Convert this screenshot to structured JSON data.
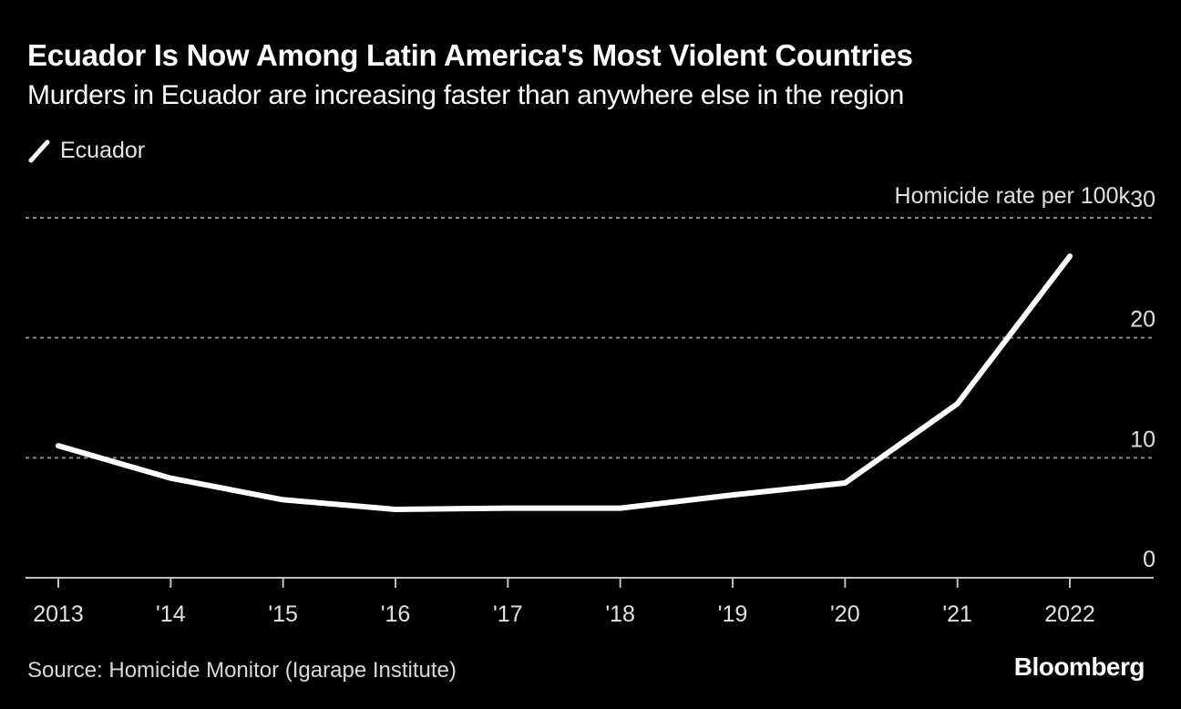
{
  "header": {
    "title": "Ecuador Is Now Among Latin America's Most Violent Countries",
    "subtitle": "Murders in Ecuador are increasing faster than anywhere else in the region"
  },
  "footer": {
    "source": "Source: Homicide Monitor (Igarape Institute)",
    "brand": "Bloomberg"
  },
  "colors": {
    "background": "#000000",
    "line": "#ffffff",
    "grid": "#8a8a8a",
    "axis": "#bfbfbf"
  },
  "chart_data": {
    "type": "line",
    "title": "Ecuador Is Now Among Latin America's Most Violent Countries",
    "subtitle": "Murders in Ecuador are increasing faster than anywhere else in the region",
    "xlabel": "",
    "ylabel": "Homicide rate per 100k",
    "categories": [
      "2013",
      "'14",
      "'15",
      "'16",
      "'17",
      "'18",
      "'19",
      "'20",
      "'21",
      "2022"
    ],
    "series": [
      {
        "name": "Ecuador",
        "values": [
          11.0,
          8.3,
          6.5,
          5.7,
          5.8,
          5.8,
          6.9,
          7.9,
          14.5,
          26.8
        ]
      }
    ],
    "ylim": [
      0,
      30
    ],
    "yticks": [
      0,
      10,
      20,
      30
    ],
    "grid": true,
    "legend": "top-left"
  }
}
